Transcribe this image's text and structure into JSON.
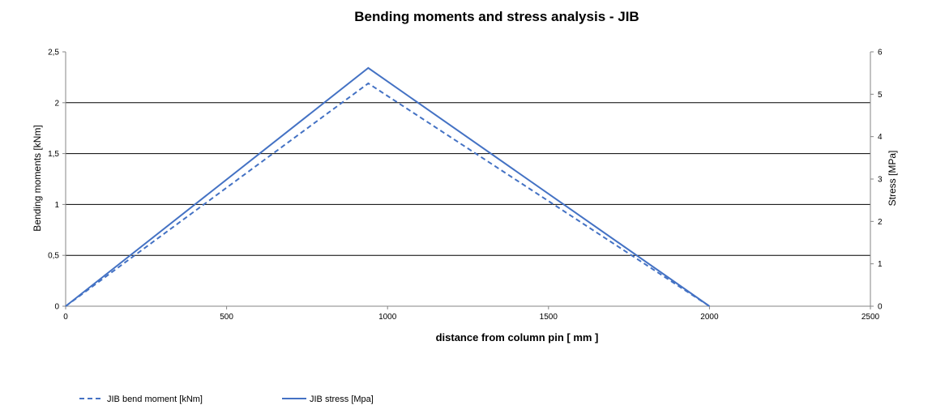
{
  "chart_data": {
    "type": "line",
    "title": "Bending moments and stress analysis - JIB",
    "xlabel": "distance from column pin [ mm ]",
    "ylabel": "Bending moments [kNm]",
    "y2label": "Stress [MPa]",
    "xlim": [
      0,
      2500
    ],
    "ylim": [
      0,
      2.5
    ],
    "y2lim": [
      0,
      6
    ],
    "x_ticks": [
      "0",
      "500",
      "1000",
      "1500",
      "2000",
      "2500"
    ],
    "y_ticks": [
      "0",
      "0,5",
      "1",
      "1,5",
      "2",
      "2,5"
    ],
    "y2_ticks": [
      "0",
      "1",
      "2",
      "3",
      "4",
      "5",
      "6"
    ],
    "gridlines_y": [
      0.5,
      1,
      1.5,
      2
    ],
    "legend_position": "bottom-left",
    "series": [
      {
        "name": "JIB bend moment [kNm]",
        "axis": "left",
        "style": "dashed",
        "color": "#4472C4",
        "x": [
          0,
          940,
          2000
        ],
        "values": [
          0,
          2.19,
          0
        ]
      },
      {
        "name": "JIB stress [Mpa]",
        "axis": "right",
        "style": "solid",
        "color": "#4472C4",
        "x": [
          0,
          940,
          2000
        ],
        "values": [
          0,
          5.62,
          0
        ]
      }
    ]
  }
}
